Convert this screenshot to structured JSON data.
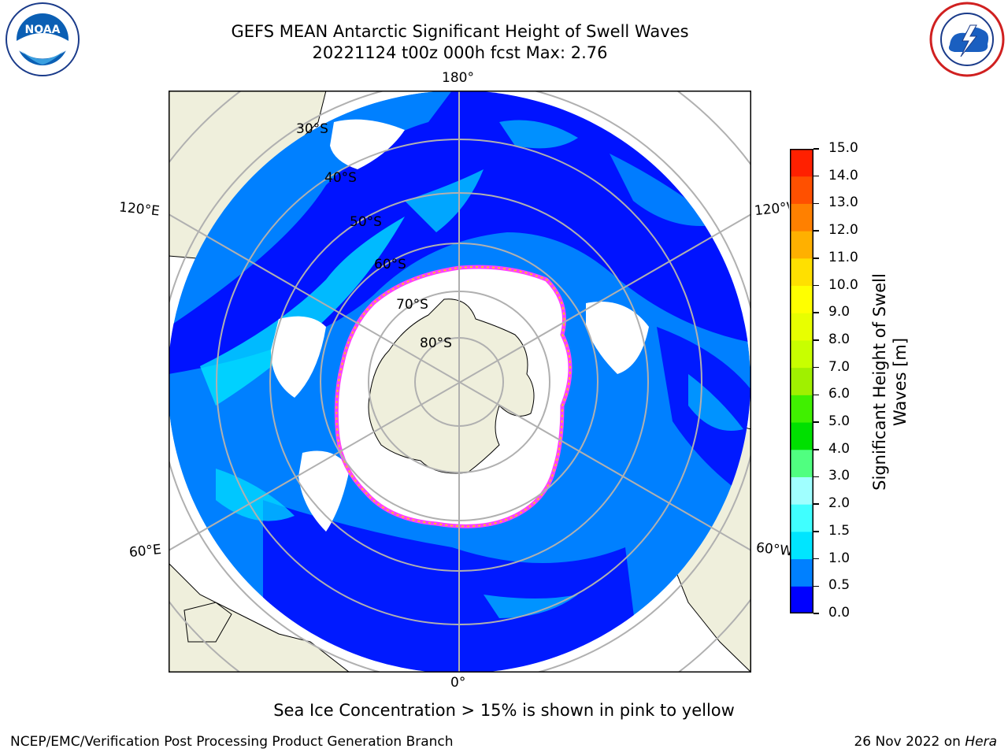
{
  "title_line1": "GEFS MEAN Antarctic Significant Height of Swell Waves",
  "title_line2": "20221124 t00z 000h fcst   Max: 2.76",
  "longitude_labels": {
    "top": "180°",
    "bottom": "0°",
    "upper_left": "120°E",
    "upper_right": "120°W",
    "lower_left": "60°E",
    "lower_right": "60°W"
  },
  "latitude_labels": [
    "30°S",
    "40°S",
    "50°S",
    "60°S",
    "70°S",
    "80°S"
  ],
  "colorbar": {
    "label_line1": "Significant Height of Swell",
    "label_line2": "Waves [m]",
    "ticks": [
      "0.0",
      "0.5",
      "1.0",
      "1.5",
      "2.0",
      "3.0",
      "4.0",
      "5.0",
      "6.0",
      "7.0",
      "8.0",
      "9.0",
      "10.0",
      "11.0",
      "12.0",
      "13.0",
      "14.0",
      "15.0"
    ],
    "colors": [
      "#0000ff",
      "#0080ff",
      "#00e5ff",
      "#40ffff",
      "#a0ffff",
      "#50ff80",
      "#00e000",
      "#40f000",
      "#a0f000",
      "#c8ff00",
      "#e8ff00",
      "#ffff00",
      "#ffe000",
      "#ffb000",
      "#ff8000",
      "#ff5000",
      "#ff2000"
    ]
  },
  "map_colors": {
    "land": "#efefdc",
    "ocean_deep": "#0000ff",
    "ocean_mid": "#0080ff",
    "ocean_light": "#00e5ff",
    "ice_edge_pink": "#ff40ff",
    "ice_edge_yellow": "#ffc020",
    "no_data": "#ffffff",
    "grid": "#b0b0b0"
  },
  "sea_ice_note": "Sea Ice Concentration > 15% is shown in pink to yellow",
  "footer_left": "NCEP/EMC/Verification Post Processing Product Generation Branch",
  "footer_right_date": "26 Nov 2022 on ",
  "footer_right_host": "Hera",
  "logos": {
    "left_text": "NOAA",
    "right_ring_text": "NATIONAL WEATHER SERVICE"
  }
}
